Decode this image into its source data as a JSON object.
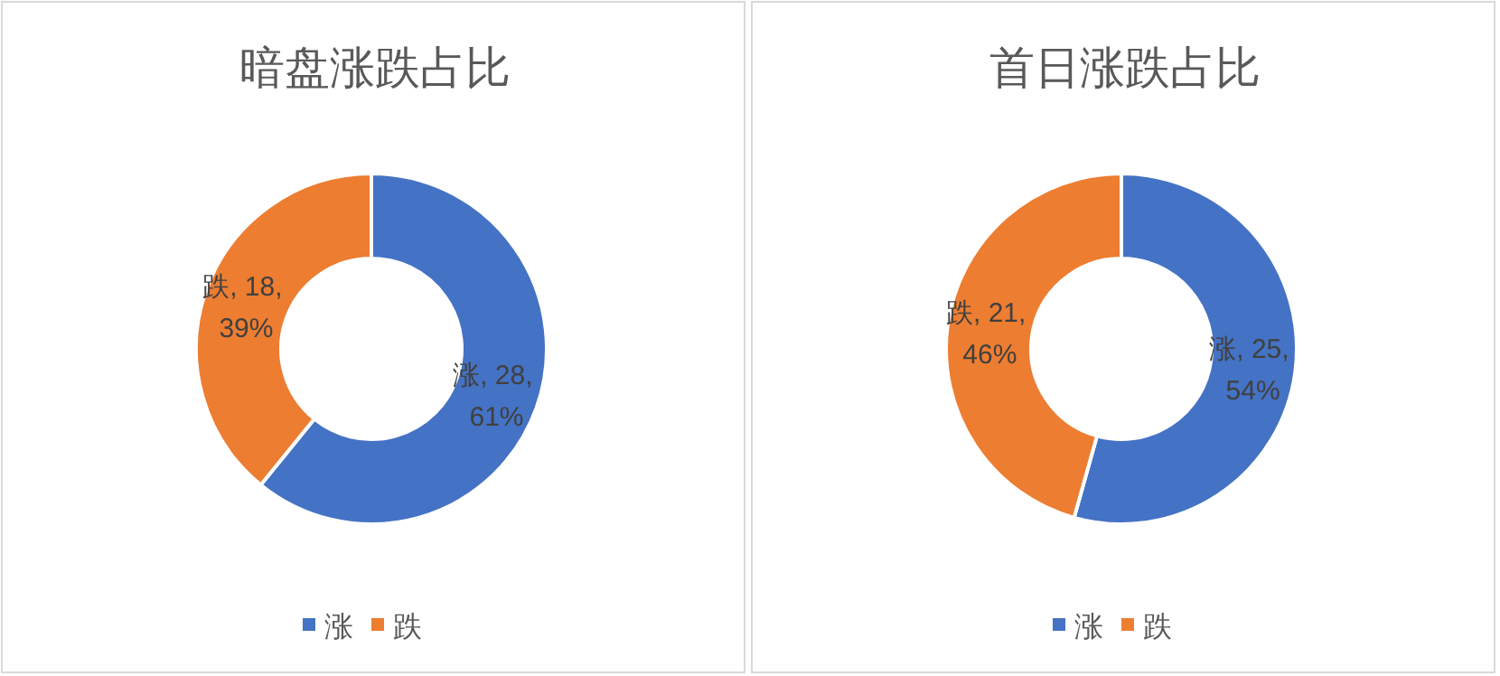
{
  "chart_data": [
    {
      "type": "donut",
      "title": "暗盘涨跌占比",
      "categories": [
        "涨",
        "跌"
      ],
      "values": [
        28,
        18
      ],
      "colors": [
        "#4472c4",
        "#ed7d31"
      ],
      "value_labels": [
        "涨, 28, 61%",
        "跌, 18, 39%"
      ],
      "legend": "bottom"
    },
    {
      "type": "donut",
      "title": "首日涨跌占比",
      "categories": [
        "涨",
        "跌"
      ],
      "values": [
        25,
        21
      ],
      "colors": [
        "#4472c4",
        "#ed7d31"
      ],
      "value_labels": [
        "涨, 25, 54%",
        "跌, 21, 46%"
      ],
      "legend": "bottom"
    }
  ]
}
